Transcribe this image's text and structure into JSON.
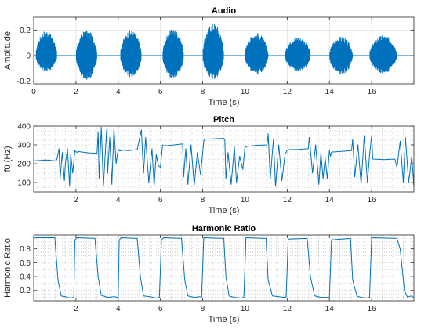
{
  "figure": {
    "background": "#ffffff",
    "line_color": "#0072bd"
  },
  "chart_data": [
    {
      "type": "line",
      "title": "Audio",
      "xlabel": "Time (s)",
      "ylabel": "Amplitude",
      "xlim": [
        0,
        18
      ],
      "ylim": [
        -0.22,
        0.3
      ],
      "xticks": [
        0,
        2,
        4,
        6,
        8,
        10,
        12,
        14,
        16
      ],
      "xtick_labels": [
        "0",
        "2",
        "4",
        "6",
        "8",
        "10",
        "12",
        "14",
        "16"
      ],
      "yticks": [
        -0.2,
        0,
        0.2
      ],
      "ytick_labels": [
        "-0.2",
        "0",
        "0.2"
      ],
      "grid": "major",
      "style": "waveform",
      "bursts": [
        {
          "start": 0.1,
          "end": 1.1,
          "pos": 0.2,
          "neg": -0.13
        },
        {
          "start": 2.0,
          "end": 3.0,
          "pos": 0.2,
          "neg": -0.19
        },
        {
          "start": 4.1,
          "end": 5.1,
          "pos": 0.2,
          "neg": -0.17
        },
        {
          "start": 6.1,
          "end": 7.1,
          "pos": 0.21,
          "neg": -0.18
        },
        {
          "start": 8.0,
          "end": 9.0,
          "pos": 0.26,
          "neg": -0.19
        },
        {
          "start": 10.0,
          "end": 11.1,
          "pos": 0.18,
          "neg": -0.15
        },
        {
          "start": 11.9,
          "end": 13.1,
          "pos": 0.15,
          "neg": -0.13
        },
        {
          "start": 14.0,
          "end": 15.1,
          "pos": 0.15,
          "neg": -0.15
        },
        {
          "start": 15.9,
          "end": 17.2,
          "pos": 0.16,
          "neg": -0.14
        }
      ]
    },
    {
      "type": "line",
      "title": "Pitch",
      "xlabel": "Time (s)",
      "ylabel": "f0 (Hz)",
      "xlim": [
        0,
        18
      ],
      "ylim": [
        50,
        400
      ],
      "xticks": [
        2,
        4,
        6,
        8,
        10,
        12,
        14,
        16
      ],
      "xtick_labels": [
        "2",
        "4",
        "6",
        "8",
        "10",
        "12",
        "14",
        "16"
      ],
      "yticks": [
        100,
        200,
        300,
        400
      ],
      "ytick_labels": [
        "100",
        "200",
        "300",
        "400"
      ],
      "grid": "minor",
      "x": [
        0.0,
        0.6,
        1.05,
        1.1,
        1.2,
        1.25,
        1.35,
        1.45,
        1.5,
        1.6,
        1.7,
        1.75,
        1.85,
        1.95,
        2.05,
        2.1,
        2.3,
        2.6,
        3.0,
        3.05,
        3.1,
        3.2,
        3.3,
        3.45,
        3.5,
        3.6,
        3.7,
        3.8,
        3.9,
        4.0,
        4.05,
        4.15,
        4.2,
        4.5,
        4.9,
        5.1,
        5.2,
        5.3,
        5.45,
        5.6,
        5.7,
        5.8,
        5.9,
        6.0,
        6.1,
        6.15,
        6.5,
        7.05,
        7.1,
        7.2,
        7.3,
        7.45,
        7.6,
        7.75,
        7.9,
        8.05,
        8.1,
        9.0,
        9.05,
        9.1,
        9.2,
        9.35,
        9.5,
        9.6,
        9.75,
        9.9,
        10.0,
        10.1,
        10.6,
        11.05,
        11.1,
        11.2,
        11.35,
        11.45,
        11.6,
        11.75,
        11.9,
        12.0,
        12.1,
        12.5,
        13.0,
        13.05,
        13.2,
        13.35,
        13.5,
        13.6,
        13.7,
        13.8,
        13.9,
        14.0,
        14.05,
        14.1,
        14.5,
        15.05,
        15.1,
        15.2,
        15.35,
        15.5,
        15.65,
        15.8,
        15.9,
        16.0,
        16.05,
        16.6,
        17.1,
        17.2,
        17.35,
        17.5,
        17.6,
        17.75,
        17.9,
        18.0
      ],
      "y": [
        215,
        220,
        215,
        225,
        280,
        120,
        260,
        110,
        200,
        280,
        80,
        250,
        150,
        270,
        260,
        265,
        262,
        258,
        255,
        370,
        120,
        395,
        80,
        380,
        150,
        340,
        90,
        390,
        200,
        280,
        268,
        270,
        272,
        270,
        275,
        380,
        150,
        340,
        100,
        280,
        80,
        250,
        190,
        180,
        300,
        295,
        298,
        305,
        130,
        280,
        90,
        300,
        85,
        260,
        140,
        320,
        330,
        335,
        330,
        120,
        260,
        90,
        290,
        100,
        240,
        170,
        285,
        292,
        298,
        300,
        360,
        120,
        330,
        80,
        300,
        110,
        250,
        270,
        275,
        276,
        280,
        340,
        150,
        300,
        90,
        260,
        120,
        230,
        120,
        270,
        240,
        262,
        265,
        270,
        330,
        130,
        300,
        90,
        350,
        100,
        245,
        350,
        225,
        222,
        225,
        180,
        320,
        100,
        340,
        100,
        240,
        80
      ]
    },
    {
      "type": "line",
      "title": "Harmonic Ratio",
      "xlabel": "Time (s)",
      "ylabel": "Harmonic Ratio",
      "xlim": [
        0,
        18
      ],
      "ylim": [
        0.05,
        1.0
      ],
      "xticks": [
        2,
        4,
        6,
        8,
        10,
        12,
        14,
        16
      ],
      "xtick_labels": [
        "2",
        "4",
        "6",
        "8",
        "10",
        "12",
        "14",
        "16"
      ],
      "yticks": [
        0.2,
        0.4,
        0.6,
        0.8
      ],
      "ytick_labels": [
        "0.2",
        "0.4",
        "0.6",
        "0.8"
      ],
      "grid": "minor",
      "x": [
        0.0,
        0.1,
        1.0,
        1.15,
        1.3,
        1.5,
        1.7,
        1.9,
        1.95,
        2.05,
        2.9,
        3.05,
        3.2,
        3.5,
        3.8,
        4.0,
        4.05,
        4.15,
        4.9,
        5.05,
        5.2,
        5.5,
        5.8,
        5.95,
        6.05,
        6.15,
        7.0,
        7.15,
        7.3,
        7.6,
        7.85,
        7.95,
        8.05,
        9.0,
        9.1,
        9.25,
        9.5,
        9.8,
        9.95,
        10.05,
        11.0,
        11.1,
        11.3,
        11.6,
        11.85,
        11.95,
        12.05,
        12.95,
        13.1,
        13.3,
        13.6,
        13.9,
        14.0,
        14.1,
        15.0,
        15.1,
        15.3,
        15.5,
        15.75,
        15.9,
        16.0,
        17.2,
        17.35,
        17.45,
        17.55,
        17.7,
        17.85,
        18.0
      ],
      "y": [
        0.95,
        0.96,
        0.96,
        0.35,
        0.12,
        0.11,
        0.09,
        0.1,
        0.93,
        0.96,
        0.95,
        0.4,
        0.13,
        0.1,
        0.11,
        0.1,
        0.93,
        0.96,
        0.95,
        0.4,
        0.12,
        0.11,
        0.09,
        0.1,
        0.93,
        0.96,
        0.95,
        0.35,
        0.12,
        0.1,
        0.11,
        0.1,
        0.96,
        0.95,
        0.4,
        0.12,
        0.1,
        0.09,
        0.1,
        0.96,
        0.95,
        0.35,
        0.12,
        0.11,
        0.1,
        0.1,
        0.94,
        0.95,
        0.4,
        0.12,
        0.1,
        0.1,
        0.1,
        0.93,
        0.95,
        0.35,
        0.12,
        0.1,
        0.09,
        0.1,
        0.96,
        0.95,
        0.8,
        0.5,
        0.2,
        0.1,
        0.12,
        0.1
      ]
    }
  ]
}
